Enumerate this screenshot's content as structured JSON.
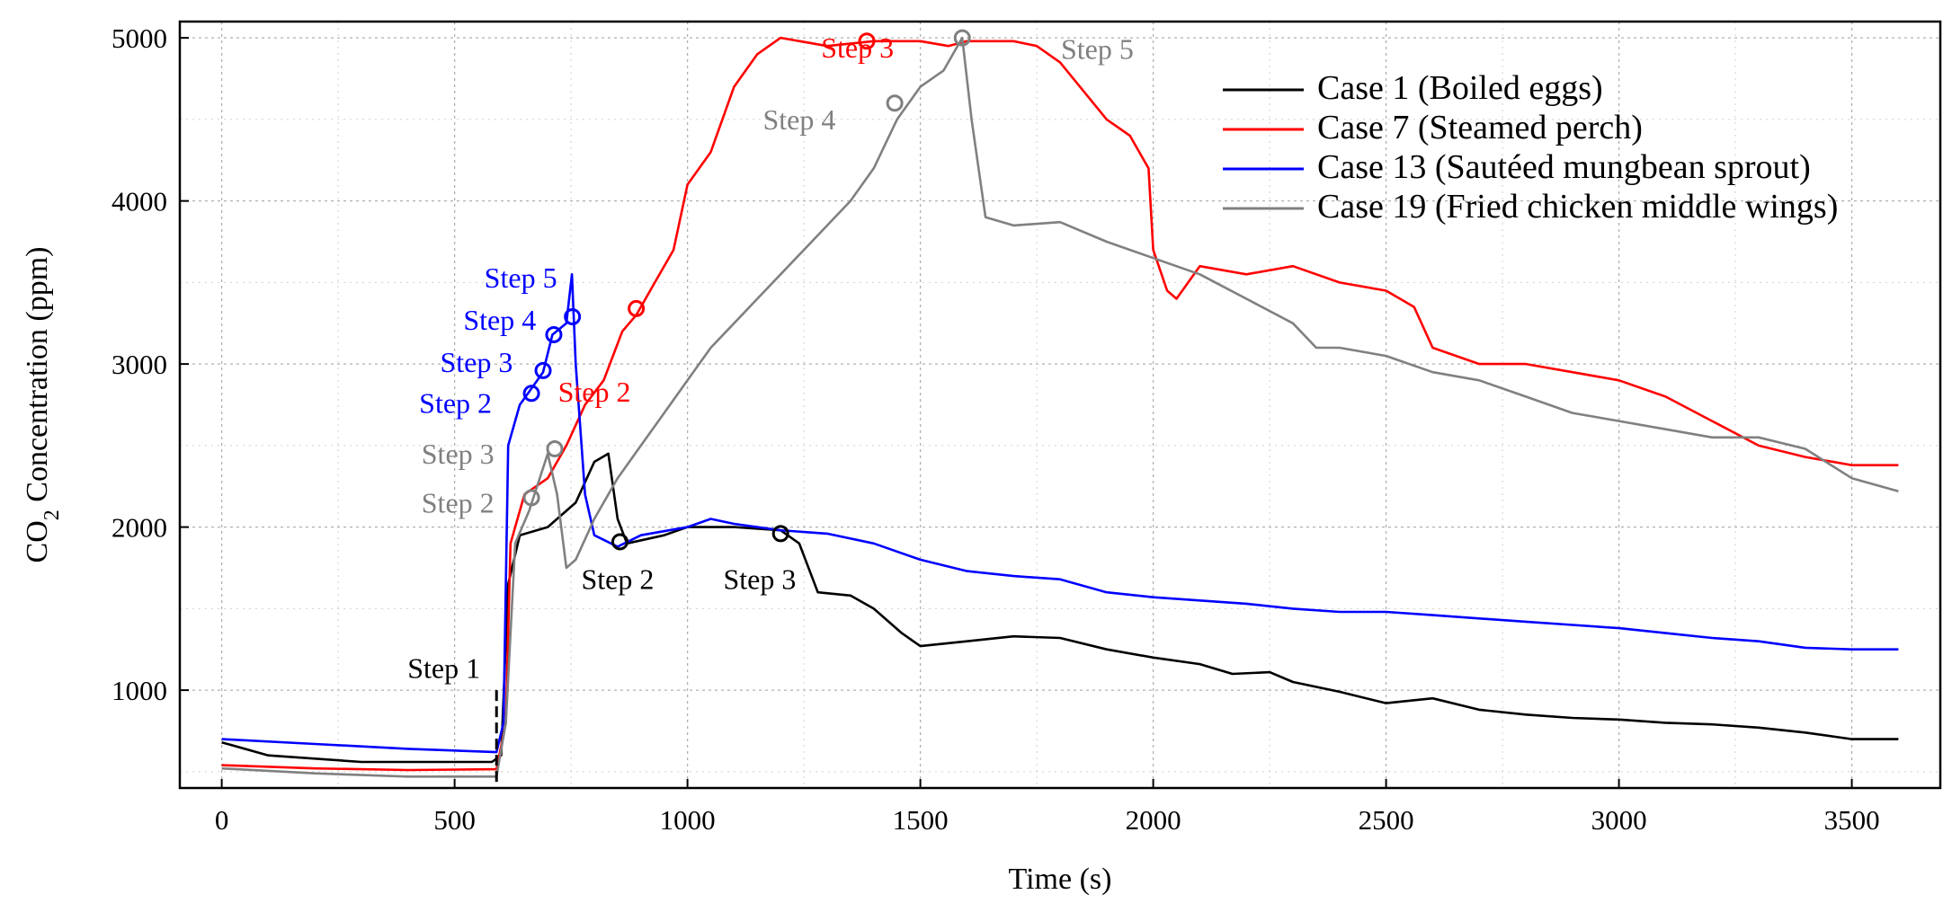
{
  "chart_data": {
    "type": "line",
    "title": "",
    "xlabel": "Time (s)",
    "ylabel_main": "CO",
    "ylabel_sub": "2",
    "ylabel_rest": " Concentration (ppm)",
    "xlim": [
      -90,
      3690
    ],
    "ylim": [
      400,
      5100
    ],
    "xticks": [
      0,
      500,
      1000,
      1500,
      2000,
      2500,
      3000,
      3500
    ],
    "yticks": [
      1000,
      2000,
      3000,
      4000,
      5000
    ],
    "xtick_labels": [
      "0",
      "500",
      "1000",
      "1500",
      "2000",
      "2500",
      "3000",
      "3500"
    ],
    "ytick_labels": [
      "1000",
      "2000",
      "3000",
      "4000",
      "5000"
    ],
    "grid": true,
    "legend_position": "top-right",
    "series": [
      {
        "name": "Case 1 (Boiled eggs)",
        "color": "#000000",
        "points": [
          [
            0,
            680
          ],
          [
            100,
            600
          ],
          [
            300,
            560
          ],
          [
            580,
            560
          ],
          [
            600,
            600
          ],
          [
            615,
            1650
          ],
          [
            640,
            1950
          ],
          [
            700,
            2000
          ],
          [
            760,
            2150
          ],
          [
            800,
            2400
          ],
          [
            830,
            2450
          ],
          [
            850,
            2050
          ],
          [
            870,
            1900
          ],
          [
            950,
            1950
          ],
          [
            1000,
            2000
          ],
          [
            1100,
            2000
          ],
          [
            1200,
            1980
          ],
          [
            1240,
            1900
          ],
          [
            1280,
            1600
          ],
          [
            1350,
            1580
          ],
          [
            1400,
            1500
          ],
          [
            1460,
            1350
          ],
          [
            1500,
            1270
          ],
          [
            1600,
            1300
          ],
          [
            1700,
            1330
          ],
          [
            1800,
            1320
          ],
          [
            1900,
            1250
          ],
          [
            2000,
            1200
          ],
          [
            2100,
            1160
          ],
          [
            2170,
            1100
          ],
          [
            2250,
            1110
          ],
          [
            2300,
            1050
          ],
          [
            2400,
            990
          ],
          [
            2500,
            920
          ],
          [
            2600,
            950
          ],
          [
            2700,
            880
          ],
          [
            2800,
            850
          ],
          [
            2900,
            830
          ],
          [
            3000,
            820
          ],
          [
            3100,
            800
          ],
          [
            3200,
            790
          ],
          [
            3300,
            770
          ],
          [
            3400,
            740
          ],
          [
            3500,
            700
          ],
          [
            3600,
            700
          ]
        ],
        "markers": [
          {
            "x": 855,
            "y": 1910,
            "label": "Step 2"
          },
          {
            "x": 1200,
            "y": 1960,
            "label": "Step 3"
          }
        ]
      },
      {
        "name": "Case 7 (Steamed perch)",
        "color": "#ff0000",
        "points": [
          [
            0,
            540
          ],
          [
            200,
            520
          ],
          [
            400,
            510
          ],
          [
            590,
            515
          ],
          [
            610,
            800
          ],
          [
            620,
            1900
          ],
          [
            650,
            2200
          ],
          [
            700,
            2300
          ],
          [
            740,
            2500
          ],
          [
            780,
            2750
          ],
          [
            820,
            2900
          ],
          [
            860,
            3200
          ],
          [
            890,
            3300
          ],
          [
            930,
            3500
          ],
          [
            970,
            3700
          ],
          [
            1000,
            4100
          ],
          [
            1050,
            4300
          ],
          [
            1100,
            4700
          ],
          [
            1150,
            4900
          ],
          [
            1200,
            5000
          ],
          [
            1300,
            4950
          ],
          [
            1400,
            4980
          ],
          [
            1500,
            4980
          ],
          [
            1560,
            4950
          ],
          [
            1600,
            4980
          ],
          [
            1700,
            4980
          ],
          [
            1750,
            4950
          ],
          [
            1800,
            4850
          ],
          [
            1900,
            4500
          ],
          [
            1950,
            4400
          ],
          [
            1990,
            4200
          ],
          [
            2000,
            3700
          ],
          [
            2030,
            3450
          ],
          [
            2050,
            3400
          ],
          [
            2100,
            3600
          ],
          [
            2200,
            3550
          ],
          [
            2300,
            3600
          ],
          [
            2400,
            3500
          ],
          [
            2500,
            3450
          ],
          [
            2560,
            3350
          ],
          [
            2600,
            3100
          ],
          [
            2700,
            3000
          ],
          [
            2800,
            3000
          ],
          [
            2900,
            2950
          ],
          [
            3000,
            2900
          ],
          [
            3100,
            2800
          ],
          [
            3200,
            2650
          ],
          [
            3300,
            2500
          ],
          [
            3400,
            2430
          ],
          [
            3500,
            2380
          ],
          [
            3600,
            2380
          ]
        ],
        "markers": [
          {
            "x": 1385,
            "y": 4980,
            "label": "Step 3"
          },
          {
            "x": 890,
            "y": 3340,
            "label": "Step 2"
          }
        ]
      },
      {
        "name": "Case 13 (Sautéed mungbean sprout)",
        "color": "#0000ff",
        "points": [
          [
            0,
            700
          ],
          [
            200,
            670
          ],
          [
            400,
            640
          ],
          [
            590,
            620
          ],
          [
            605,
            800
          ],
          [
            615,
            2500
          ],
          [
            640,
            2750
          ],
          [
            660,
            2830
          ],
          [
            690,
            2950
          ],
          [
            710,
            3180
          ],
          [
            740,
            3250
          ],
          [
            752,
            3550
          ],
          [
            760,
            3000
          ],
          [
            780,
            2200
          ],
          [
            800,
            1950
          ],
          [
            850,
            1880
          ],
          [
            900,
            1950
          ],
          [
            1000,
            2000
          ],
          [
            1050,
            2050
          ],
          [
            1100,
            2020
          ],
          [
            1200,
            1980
          ],
          [
            1300,
            1960
          ],
          [
            1400,
            1900
          ],
          [
            1500,
            1800
          ],
          [
            1600,
            1730
          ],
          [
            1700,
            1700
          ],
          [
            1800,
            1680
          ],
          [
            1900,
            1600
          ],
          [
            2000,
            1570
          ],
          [
            2100,
            1550
          ],
          [
            2200,
            1530
          ],
          [
            2300,
            1500
          ],
          [
            2400,
            1480
          ],
          [
            2500,
            1480
          ],
          [
            2600,
            1460
          ],
          [
            2700,
            1440
          ],
          [
            2800,
            1420
          ],
          [
            2900,
            1400
          ],
          [
            3000,
            1380
          ],
          [
            3100,
            1350
          ],
          [
            3200,
            1320
          ],
          [
            3300,
            1300
          ],
          [
            3400,
            1260
          ],
          [
            3500,
            1250
          ],
          [
            3600,
            1250
          ]
        ],
        "markers": [
          {
            "x": 665,
            "y": 2820,
            "label": "Step 2"
          },
          {
            "x": 690,
            "y": 2960,
            "label": "Step 3"
          },
          {
            "x": 713,
            "y": 3180,
            "label": "Step 4"
          },
          {
            "x": 753,
            "y": 3290,
            "label": "Step 5"
          }
        ]
      },
      {
        "name": "Case 19 (Fried chicken middle wings)",
        "color": "#808080",
        "points": [
          [
            0,
            520
          ],
          [
            200,
            490
          ],
          [
            400,
            470
          ],
          [
            590,
            470
          ],
          [
            610,
            800
          ],
          [
            630,
            1900
          ],
          [
            660,
            2100
          ],
          [
            700,
            2450
          ],
          [
            720,
            2200
          ],
          [
            740,
            1750
          ],
          [
            760,
            1800
          ],
          [
            800,
            2050
          ],
          [
            850,
            2300
          ],
          [
            900,
            2500
          ],
          [
            950,
            2700
          ],
          [
            1000,
            2900
          ],
          [
            1050,
            3100
          ],
          [
            1100,
            3250
          ],
          [
            1150,
            3400
          ],
          [
            1200,
            3550
          ],
          [
            1250,
            3700
          ],
          [
            1300,
            3850
          ],
          [
            1350,
            4000
          ],
          [
            1400,
            4200
          ],
          [
            1450,
            4500
          ],
          [
            1500,
            4700
          ],
          [
            1550,
            4800
          ],
          [
            1590,
            5000
          ],
          [
            1610,
            4500
          ],
          [
            1640,
            3900
          ],
          [
            1700,
            3850
          ],
          [
            1800,
            3870
          ],
          [
            1900,
            3750
          ],
          [
            2000,
            3650
          ],
          [
            2100,
            3550
          ],
          [
            2200,
            3400
          ],
          [
            2300,
            3250
          ],
          [
            2350,
            3100
          ],
          [
            2400,
            3100
          ],
          [
            2500,
            3050
          ],
          [
            2600,
            2950
          ],
          [
            2700,
            2900
          ],
          [
            2800,
            2800
          ],
          [
            2900,
            2700
          ],
          [
            3000,
            2650
          ],
          [
            3100,
            2600
          ],
          [
            3200,
            2550
          ],
          [
            3300,
            2550
          ],
          [
            3400,
            2480
          ],
          [
            3500,
            2300
          ],
          [
            3600,
            2220
          ]
        ],
        "markers": [
          {
            "x": 665,
            "y": 2180,
            "label": "Step 2"
          },
          {
            "x": 715,
            "y": 2480,
            "label": "Step 3"
          },
          {
            "x": 1445,
            "y": 4600,
            "label": "Step 4"
          },
          {
            "x": 1590,
            "y": 5000,
            "label": "Step 5"
          }
        ]
      }
    ],
    "annotations": [
      {
        "text": "Step 1",
        "color": "#000000",
        "x": 555,
        "y": 1075,
        "anchor": "end"
      },
      {
        "text": "Step 2",
        "color": "#000000",
        "x": 850,
        "y": 1620,
        "anchor": "middle"
      },
      {
        "text": "Step 3",
        "color": "#000000",
        "x": 1155,
        "y": 1620,
        "anchor": "middle"
      },
      {
        "text": "Step 2",
        "color": "#ff0000",
        "x": 800,
        "y": 2770,
        "anchor": "middle"
      },
      {
        "text": "Step 3",
        "color": "#ff0000",
        "x": 1365,
        "y": 4880,
        "anchor": "middle"
      },
      {
        "text": "Step 2",
        "color": "#0000ff",
        "x": 580,
        "y": 2700,
        "anchor": "end"
      },
      {
        "text": "Step 3",
        "color": "#0000ff",
        "x": 625,
        "y": 2950,
        "anchor": "end"
      },
      {
        "text": "Step 4",
        "color": "#0000ff",
        "x": 675,
        "y": 3210,
        "anchor": "end"
      },
      {
        "text": "Step 5",
        "color": "#0000ff",
        "x": 720,
        "y": 3470,
        "anchor": "end"
      },
      {
        "text": "Step 2",
        "color": "#808080",
        "x": 585,
        "y": 2090,
        "anchor": "end"
      },
      {
        "text": "Step 3",
        "color": "#808080",
        "x": 585,
        "y": 2390,
        "anchor": "end"
      },
      {
        "text": "Step 4",
        "color": "#808080",
        "x": 1240,
        "y": 4440,
        "anchor": "middle"
      },
      {
        "text": "Step 5",
        "color": "#808080",
        "x": 1880,
        "y": 4870,
        "anchor": "middle"
      }
    ],
    "step1_line": {
      "x": 590
    }
  }
}
